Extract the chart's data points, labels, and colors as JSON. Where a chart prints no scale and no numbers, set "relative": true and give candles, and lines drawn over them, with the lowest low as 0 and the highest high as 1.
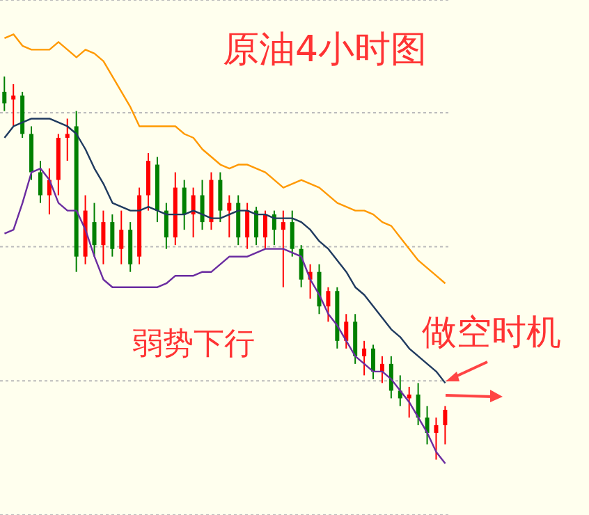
{
  "chart_data": {
    "type": "candlestick",
    "title": "原油4小时图",
    "annotations": [
      "弱势下行",
      "做空时机"
    ],
    "relative": true,
    "grid": "y",
    "categories": [
      null,
      null,
      null,
      null,
      null,
      null,
      null,
      null,
      null,
      null,
      null,
      null,
      null,
      null,
      null,
      null,
      null,
      null,
      null,
      null,
      null,
      null,
      null,
      null,
      null,
      null,
      null,
      null,
      null,
      null,
      null,
      null,
      null,
      null,
      null,
      null,
      null,
      null,
      null,
      null,
      null,
      null,
      null,
      null,
      null,
      null,
      null,
      null,
      null,
      null
    ],
    "ohlc": [
      [
        0.96,
        1.0,
        0.91,
        0.93
      ],
      [
        0.94,
        0.98,
        0.87,
        0.95
      ],
      [
        0.95,
        0.96,
        0.84,
        0.85
      ],
      [
        0.85,
        0.87,
        0.73,
        0.75
      ],
      [
        0.75,
        0.78,
        0.67,
        0.69
      ],
      [
        0.69,
        0.76,
        0.64,
        0.73
      ],
      [
        0.73,
        0.85,
        0.69,
        0.84
      ],
      [
        0.84,
        0.89,
        0.78,
        0.85
      ],
      [
        0.87,
        0.91,
        0.49,
        0.53
      ],
      [
        0.53,
        0.69,
        0.51,
        0.65
      ],
      [
        0.62,
        0.67,
        0.53,
        0.56
      ],
      [
        0.56,
        0.65,
        0.51,
        0.62
      ],
      [
        0.62,
        0.64,
        0.53,
        0.55
      ],
      [
        0.55,
        0.65,
        0.51,
        0.6
      ],
      [
        0.6,
        0.62,
        0.49,
        0.51
      ],
      [
        0.53,
        0.71,
        0.51,
        0.69
      ],
      [
        0.69,
        0.8,
        0.65,
        0.78
      ],
      [
        0.77,
        0.79,
        0.62,
        0.65
      ],
      [
        0.65,
        0.67,
        0.55,
        0.58
      ],
      [
        0.58,
        0.75,
        0.56,
        0.71
      ],
      [
        0.71,
        0.73,
        0.6,
        0.64
      ],
      [
        0.64,
        0.71,
        0.58,
        0.69
      ],
      [
        0.69,
        0.73,
        0.6,
        0.62
      ],
      [
        0.62,
        0.75,
        0.6,
        0.73
      ],
      [
        0.73,
        0.75,
        0.62,
        0.65
      ],
      [
        0.65,
        0.69,
        0.58,
        0.67
      ],
      [
        0.67,
        0.69,
        0.56,
        0.58
      ],
      [
        0.58,
        0.67,
        0.55,
        0.65
      ],
      [
        0.65,
        0.66,
        0.56,
        0.58
      ],
      [
        0.58,
        0.65,
        0.55,
        0.64
      ],
      [
        0.64,
        0.65,
        0.56,
        0.6
      ],
      [
        0.6,
        0.65,
        0.45,
        0.62
      ],
      [
        0.62,
        0.65,
        0.53,
        0.55
      ],
      [
        0.55,
        0.56,
        0.45,
        0.47
      ],
      [
        0.47,
        0.51,
        0.42,
        0.49
      ],
      [
        0.49,
        0.51,
        0.38,
        0.4
      ],
      [
        0.4,
        0.45,
        0.36,
        0.44
      ],
      [
        0.44,
        0.45,
        0.29,
        0.31
      ],
      [
        0.31,
        0.38,
        0.29,
        0.36
      ],
      [
        0.36,
        0.38,
        0.25,
        0.27
      ],
      [
        0.27,
        0.31,
        0.22,
        0.29
      ],
      [
        0.29,
        0.3,
        0.21,
        0.23
      ],
      [
        0.23,
        0.27,
        0.2,
        0.25
      ],
      [
        0.25,
        0.27,
        0.16,
        0.18
      ],
      [
        0.18,
        0.22,
        0.14,
        0.16
      ],
      [
        0.16,
        0.19,
        0.11,
        0.17
      ],
      [
        0.17,
        0.2,
        0.09,
        0.11
      ],
      [
        0.11,
        0.14,
        0.04,
        0.07
      ],
      [
        0.07,
        0.11,
        0.0,
        0.09
      ],
      [
        0.09,
        0.14,
        0.04,
        0.13
      ]
    ],
    "series": [
      {
        "type": "line",
        "color": "#ff9900",
        "values": [
          1.1,
          1.11,
          1.08,
          1.07,
          1.07,
          1.07,
          1.09,
          1.07,
          1.05,
          1.07,
          1.06,
          1.04,
          1.0,
          0.96,
          0.92,
          0.87,
          0.87,
          0.87,
          0.87,
          0.87,
          0.85,
          0.84,
          0.81,
          0.79,
          0.77,
          0.76,
          0.77,
          0.77,
          0.76,
          0.75,
          0.73,
          0.71,
          0.72,
          0.73,
          0.72,
          0.71,
          0.69,
          0.67,
          0.66,
          0.65,
          0.65,
          0.64,
          0.62,
          0.61,
          0.58,
          0.55,
          0.52,
          0.5,
          0.48,
          0.46
        ]
      },
      {
        "type": "line",
        "color": "#1f3a5f",
        "values": [
          0.84,
          0.87,
          0.88,
          0.89,
          0.89,
          0.89,
          0.88,
          0.87,
          0.85,
          0.81,
          0.76,
          0.72,
          0.67,
          0.66,
          0.65,
          0.65,
          0.66,
          0.65,
          0.64,
          0.64,
          0.64,
          0.65,
          0.64,
          0.63,
          0.63,
          0.64,
          0.65,
          0.65,
          0.64,
          0.64,
          0.63,
          0.63,
          0.63,
          0.62,
          0.6,
          0.57,
          0.55,
          0.52,
          0.49,
          0.45,
          0.43,
          0.4,
          0.37,
          0.34,
          0.32,
          0.29,
          0.27,
          0.25,
          0.23,
          0.2
        ]
      },
      {
        "type": "line",
        "color": "#6a2ca0",
        "values": [
          0.59,
          0.6,
          0.67,
          0.75,
          0.76,
          0.73,
          0.67,
          0.65,
          0.65,
          0.6,
          0.53,
          0.47,
          0.45,
          0.45,
          0.45,
          0.45,
          0.45,
          0.45,
          0.46,
          0.48,
          0.48,
          0.48,
          0.49,
          0.49,
          0.51,
          0.53,
          0.53,
          0.53,
          0.54,
          0.55,
          0.55,
          0.55,
          0.54,
          0.53,
          0.47,
          0.43,
          0.38,
          0.35,
          0.31,
          0.27,
          0.25,
          0.23,
          0.23,
          0.21,
          0.18,
          0.15,
          0.11,
          0.07,
          0.02,
          -0.01
        ]
      }
    ]
  }
}
